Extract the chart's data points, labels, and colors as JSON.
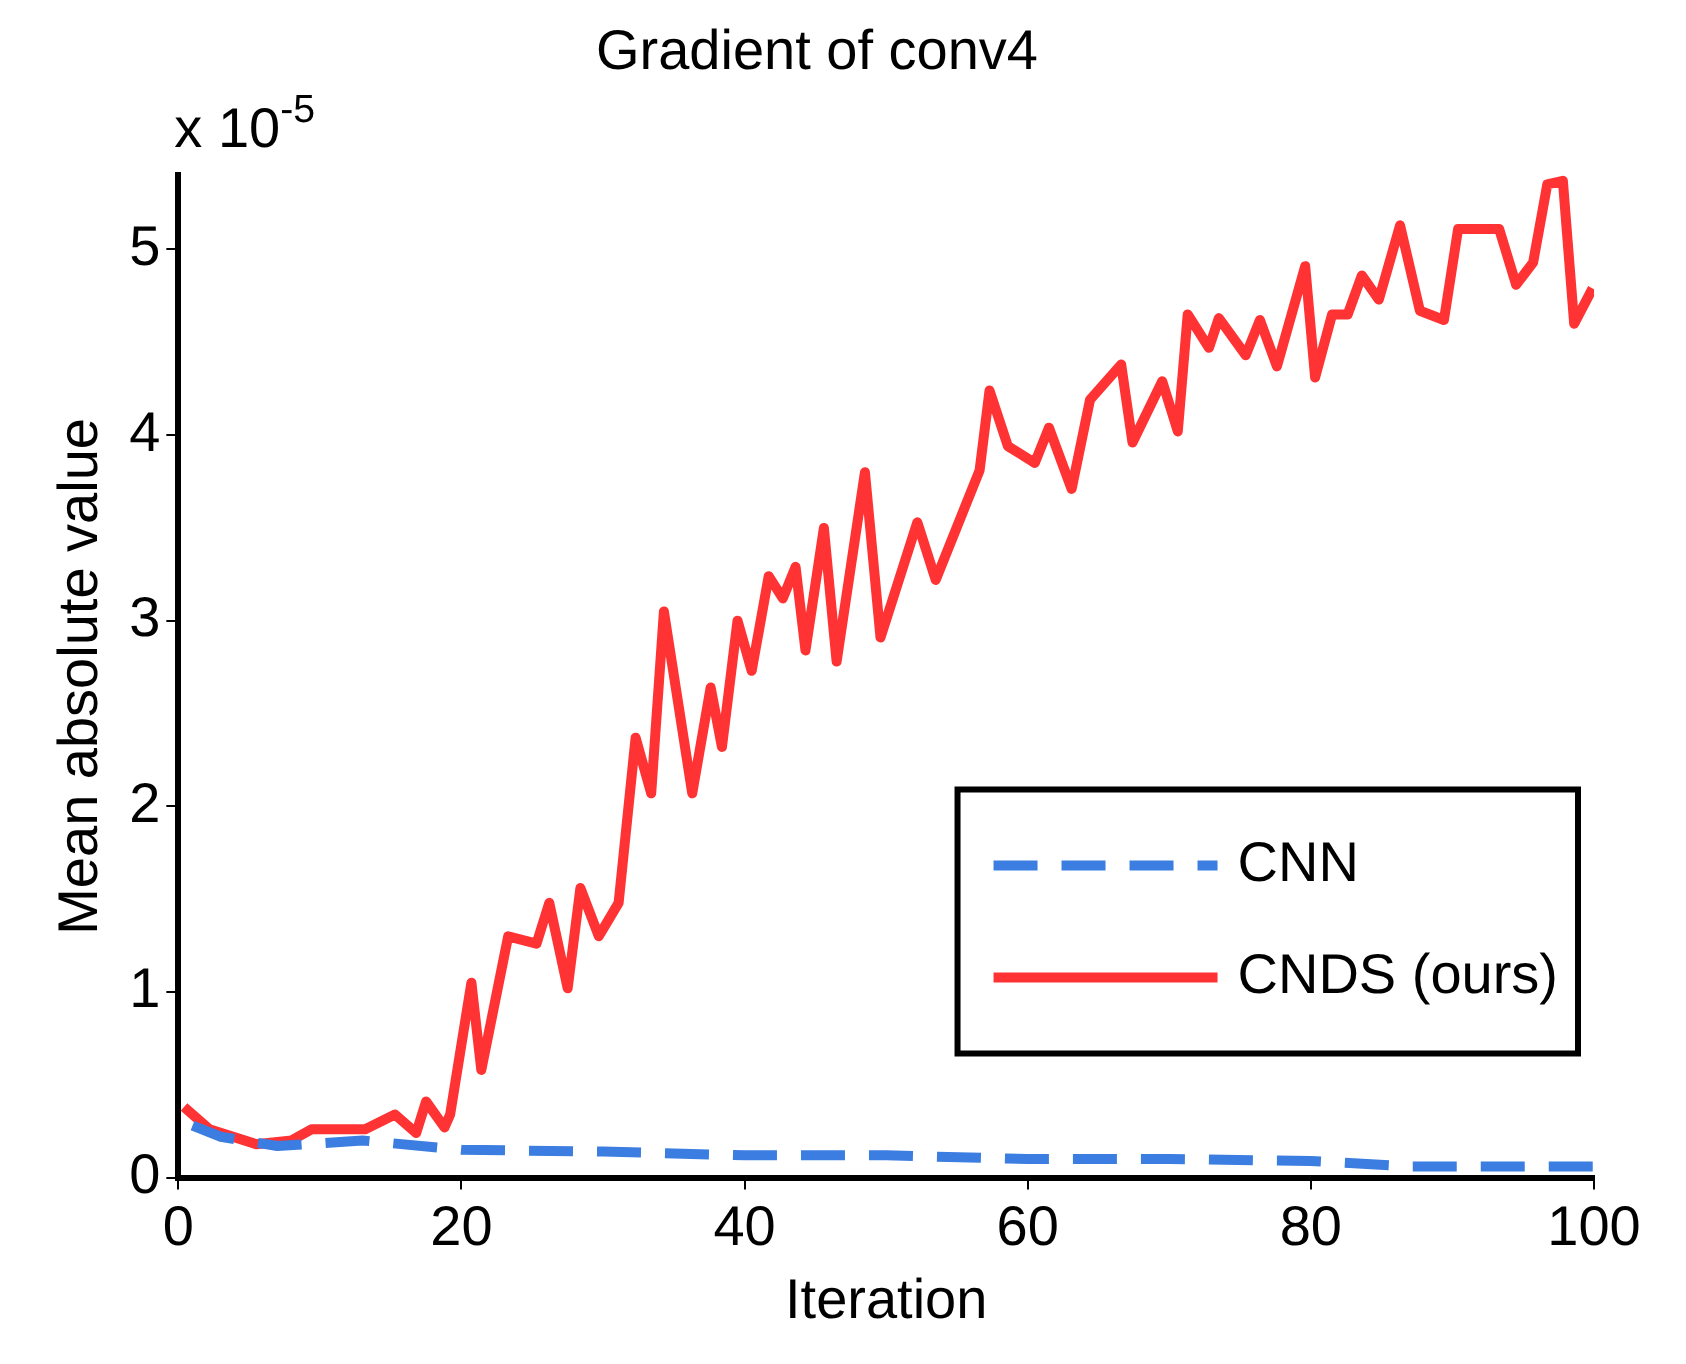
{
  "chart_data": {
    "type": "line",
    "title": "Gradient of conv4",
    "xlabel": "Iteration",
    "ylabel": "Mean absolute value",
    "annotations": [
      "x 10$^{-5}$"
    ],
    "xlim": [
      0,
      100
    ],
    "xticks": [
      0,
      20,
      40,
      60,
      80,
      100
    ],
    "ylim": [
      0,
      5.4
    ],
    "yticks": [
      0,
      1,
      2,
      3,
      4,
      5
    ],
    "grid": false,
    "legend": "bottom right",
    "marker": "none",
    "series": [
      {
        "name": "CNN",
        "color": "#3b7de0",
        "line_style": "dashed",
        "x": [
          1,
          3,
          7,
          13,
          20,
          30,
          40,
          50,
          60,
          70,
          80,
          87,
          100
        ],
        "values": [
          0.28,
          0.22,
          0.17,
          0.2,
          0.15,
          0.14,
          0.12,
          0.12,
          0.1,
          0.1,
          0.09,
          0.06,
          0.06
        ]
      },
      {
        "name": "CNDS (ours)",
        "color": "#ff3333",
        "line_style": "solid",
        "x": [
          0.4,
          2.2,
          5.5,
          8,
          9.4,
          13.2,
          15.3,
          16.8,
          17.5,
          18.8,
          19.2,
          20.7,
          21.4,
          23.3,
          25.3,
          26.2,
          27.5,
          28.4,
          29.7,
          31.1,
          32.3,
          33.4,
          34.3,
          36.3,
          37.6,
          38.4,
          39.5,
          40.5,
          41.7,
          42.7,
          43.6,
          44.3,
          45.6,
          46.5,
          48.5,
          49.6,
          52.2,
          53.5,
          56.6,
          57.3,
          58.6,
          60.5,
          61.5,
          63.1,
          64.4,
          66.6,
          67.4,
          69.5,
          70.6,
          71.3,
          72.8,
          73.5,
          75.4,
          76.4,
          77.6,
          79.6,
          80.3,
          81.5,
          82.6,
          83.6,
          84.8,
          86.3,
          87.7,
          89.4,
          90.4,
          93.3,
          94.5,
          95.7,
          96.7,
          97.8,
          98.6,
          99.9
        ],
        "values": [
          0.38,
          0.26,
          0.18,
          0.2,
          0.26,
          0.26,
          0.34,
          0.24,
          0.41,
          0.27,
          0.34,
          1.05,
          0.58,
          1.3,
          1.26,
          1.48,
          1.02,
          1.56,
          1.3,
          1.48,
          2.37,
          2.07,
          3.05,
          2.07,
          2.64,
          2.32,
          3.0,
          2.73,
          3.24,
          3.12,
          3.29,
          2.84,
          3.5,
          2.78,
          3.8,
          2.91,
          3.53,
          3.22,
          3.81,
          4.24,
          3.94,
          3.85,
          4.04,
          3.71,
          4.19,
          4.38,
          3.96,
          4.29,
          4.02,
          4.65,
          4.47,
          4.63,
          4.43,
          4.62,
          4.37,
          4.91,
          4.31,
          4.65,
          4.65,
          4.86,
          4.73,
          5.13,
          4.67,
          4.62,
          5.11,
          5.11,
          4.81,
          4.93,
          5.35,
          5.37,
          4.6,
          4.79
        ]
      }
    ]
  }
}
